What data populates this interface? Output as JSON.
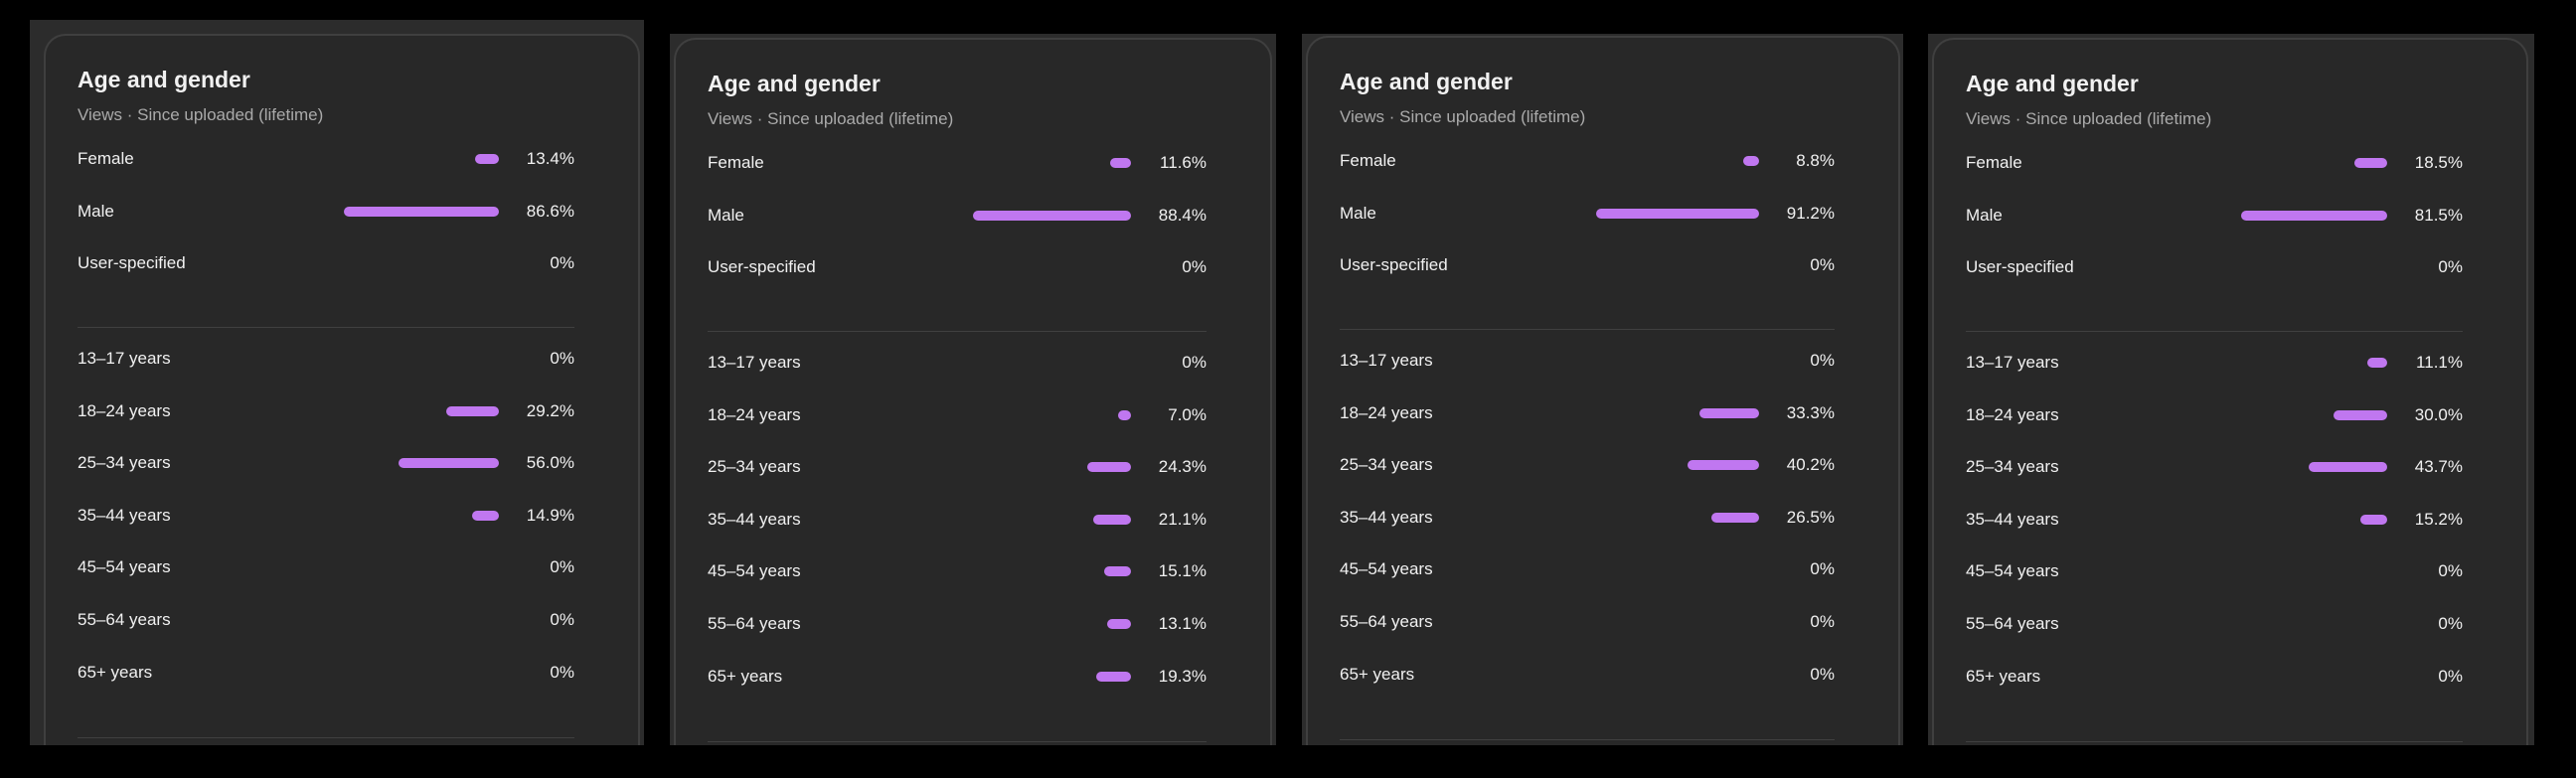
{
  "colors": {
    "bar": "#c077f0",
    "card": "#282828",
    "background": "#000000"
  },
  "cards": [
    {
      "title": "Age and gender",
      "subtitle": "Views · Since uploaded (lifetime)",
      "gender": [
        {
          "label": "Female",
          "value": "13.4%",
          "pct": 13.4
        },
        {
          "label": "Male",
          "value": "86.6%",
          "pct": 86.6
        },
        {
          "label": "User-specified",
          "value": "0%",
          "pct": 0
        }
      ],
      "age": [
        {
          "label": "13–17 years",
          "value": "0%",
          "pct": 0
        },
        {
          "label": "18–24 years",
          "value": "29.2%",
          "pct": 29.2
        },
        {
          "label": "25–34 years",
          "value": "56.0%",
          "pct": 56.0
        },
        {
          "label": "35–44 years",
          "value": "14.9%",
          "pct": 14.9
        },
        {
          "label": "45–54 years",
          "value": "0%",
          "pct": 0
        },
        {
          "label": "55–64 years",
          "value": "0%",
          "pct": 0
        },
        {
          "label": "65+ years",
          "value": "0%",
          "pct": 0
        }
      ]
    },
    {
      "title": "Age and gender",
      "subtitle": "Views · Since uploaded (lifetime)",
      "gender": [
        {
          "label": "Female",
          "value": "11.6%",
          "pct": 11.6
        },
        {
          "label": "Male",
          "value": "88.4%",
          "pct": 88.4
        },
        {
          "label": "User-specified",
          "value": "0%",
          "pct": 0
        }
      ],
      "age": [
        {
          "label": "13–17 years",
          "value": "0%",
          "pct": 0
        },
        {
          "label": "18–24 years",
          "value": "7.0%",
          "pct": 7.0
        },
        {
          "label": "25–34 years",
          "value": "24.3%",
          "pct": 24.3
        },
        {
          "label": "35–44 years",
          "value": "21.1%",
          "pct": 21.1
        },
        {
          "label": "45–54 years",
          "value": "15.1%",
          "pct": 15.1
        },
        {
          "label": "55–64 years",
          "value": "13.1%",
          "pct": 13.1
        },
        {
          "label": "65+ years",
          "value": "19.3%",
          "pct": 19.3
        }
      ]
    },
    {
      "title": "Age and gender",
      "subtitle": "Views · Since uploaded (lifetime)",
      "gender": [
        {
          "label": "Female",
          "value": "8.8%",
          "pct": 8.8
        },
        {
          "label": "Male",
          "value": "91.2%",
          "pct": 91.2
        },
        {
          "label": "User-specified",
          "value": "0%",
          "pct": 0
        }
      ],
      "age": [
        {
          "label": "13–17 years",
          "value": "0%",
          "pct": 0
        },
        {
          "label": "18–24 years",
          "value": "33.3%",
          "pct": 33.3
        },
        {
          "label": "25–34 years",
          "value": "40.2%",
          "pct": 40.2
        },
        {
          "label": "35–44 years",
          "value": "26.5%",
          "pct": 26.5
        },
        {
          "label": "45–54 years",
          "value": "0%",
          "pct": 0
        },
        {
          "label": "55–64 years",
          "value": "0%",
          "pct": 0
        },
        {
          "label": "65+ years",
          "value": "0%",
          "pct": 0
        }
      ]
    },
    {
      "title": "Age and gender",
      "subtitle": "Views · Since uploaded (lifetime)",
      "gender": [
        {
          "label": "Female",
          "value": "18.5%",
          "pct": 18.5
        },
        {
          "label": "Male",
          "value": "81.5%",
          "pct": 81.5
        },
        {
          "label": "User-specified",
          "value": "0%",
          "pct": 0
        }
      ],
      "age": [
        {
          "label": "13–17 years",
          "value": "11.1%",
          "pct": 11.1
        },
        {
          "label": "18–24 years",
          "value": "30.0%",
          "pct": 30.0
        },
        {
          "label": "25–34 years",
          "value": "43.7%",
          "pct": 43.7
        },
        {
          "label": "35–44 years",
          "value": "15.2%",
          "pct": 15.2
        },
        {
          "label": "45–54 years",
          "value": "0%",
          "pct": 0
        },
        {
          "label": "55–64 years",
          "value": "0%",
          "pct": 0
        },
        {
          "label": "65+ years",
          "value": "0%",
          "pct": 0
        }
      ]
    }
  ]
}
